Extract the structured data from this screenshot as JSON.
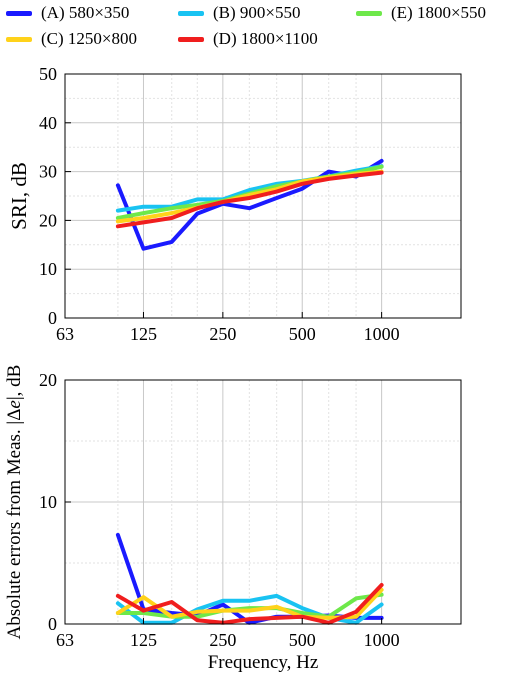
{
  "legend": [
    {
      "label": "(A) 580×350",
      "color": "#1a1aff"
    },
    {
      "label": "(B) 900×550",
      "color": "#19c3f2"
    },
    {
      "label": "(E) 1800×550",
      "color": "#6ee84a"
    },
    {
      "label": "(C) 1250×800",
      "color": "#ffd21a"
    },
    {
      "label": "(D) 1800×1100",
      "color": "#f01e1e"
    }
  ],
  "chart_data": [
    {
      "type": "line",
      "xscale": "log",
      "x_ticks": [
        63,
        125,
        250,
        500,
        1000
      ],
      "x_tick_labels": [
        "63",
        "125",
        "250",
        "500",
        "1000"
      ],
      "xlim": [
        63,
        2000
      ],
      "ylabel": "SRI, dB",
      "ylim": [
        0,
        50
      ],
      "y_ticks": [
        0,
        10,
        20,
        30,
        40,
        50
      ],
      "grid": true,
      "x": [
        100,
        125,
        160,
        200,
        250,
        315,
        400,
        500,
        630,
        800,
        1000
      ],
      "series": [
        {
          "name": "(A) 580×350",
          "color": "#1a1aff",
          "values": [
            27.2,
            14.2,
            15.6,
            21.4,
            23.4,
            22.5,
            24.6,
            26.5,
            30.0,
            29.0,
            32.2
          ]
        },
        {
          "name": "(B) 900×550",
          "color": "#19c3f2",
          "values": [
            22.0,
            22.8,
            22.8,
            24.3,
            24.3,
            26.2,
            27.5,
            28.1,
            29.0,
            30.2,
            31.1
          ]
        },
        {
          "name": "(E) 1800×550",
          "color": "#6ee84a",
          "values": [
            20.5,
            21.5,
            22.5,
            23.2,
            24.0,
            25.5,
            27.0,
            28.0,
            29.0,
            29.8,
            31.0
          ]
        },
        {
          "name": "(C) 1250×800",
          "color": "#ffd21a",
          "values": [
            19.8,
            20.5,
            21.5,
            22.6,
            23.8,
            25.2,
            26.4,
            28.0,
            28.8,
            29.5,
            30.0
          ]
        },
        {
          "name": "(D) 1800×1100",
          "color": "#f01e1e",
          "values": [
            18.8,
            19.6,
            20.5,
            22.5,
            23.8,
            24.6,
            25.9,
            27.5,
            28.5,
            29.2,
            29.8
          ]
        }
      ]
    },
    {
      "type": "line",
      "xscale": "log",
      "x_ticks": [
        63,
        125,
        250,
        500,
        1000
      ],
      "x_tick_labels": [
        "63",
        "125",
        "250",
        "500",
        "1000"
      ],
      "xlim": [
        63,
        2000
      ],
      "xlabel": "Frequency, Hz",
      "ylabel": "Absolute errors from Meas. |Δe|, dB",
      "ylim": [
        0,
        20
      ],
      "y_ticks": [
        0,
        10,
        20
      ],
      "grid": true,
      "x": [
        100,
        125,
        160,
        200,
        250,
        315,
        400,
        500,
        630,
        800,
        1000
      ],
      "series": [
        {
          "name": "(A) 580×350",
          "color": "#1a1aff",
          "values": [
            7.3,
            1.2,
            0.9,
            0.7,
            1.6,
            0.1,
            0.6,
            0.6,
            0.7,
            0.5,
            0.5
          ]
        },
        {
          "name": "(B) 900×550",
          "color": "#19c3f2",
          "values": [
            1.7,
            0.1,
            0.1,
            1.2,
            1.9,
            1.9,
            2.3,
            1.3,
            0.5,
            0.1,
            1.6
          ]
        },
        {
          "name": "(E) 1800×550",
          "color": "#6ee84a",
          "values": [
            0.9,
            0.9,
            0.6,
            0.6,
            1.1,
            1.3,
            1.3,
            0.9,
            0.6,
            2.1,
            2.4
          ]
        },
        {
          "name": "(C) 1250×800",
          "color": "#ffd21a",
          "values": [
            0.9,
            2.2,
            0.6,
            1.0,
            1.1,
            1.1,
            1.4,
            0.6,
            0.5,
            0.6,
            2.8
          ]
        },
        {
          "name": "(D) 1800×1100",
          "color": "#f01e1e",
          "values": [
            2.3,
            1.1,
            1.8,
            0.3,
            0.1,
            0.4,
            0.5,
            0.6,
            0.1,
            1.0,
            3.2
          ]
        }
      ]
    }
  ]
}
